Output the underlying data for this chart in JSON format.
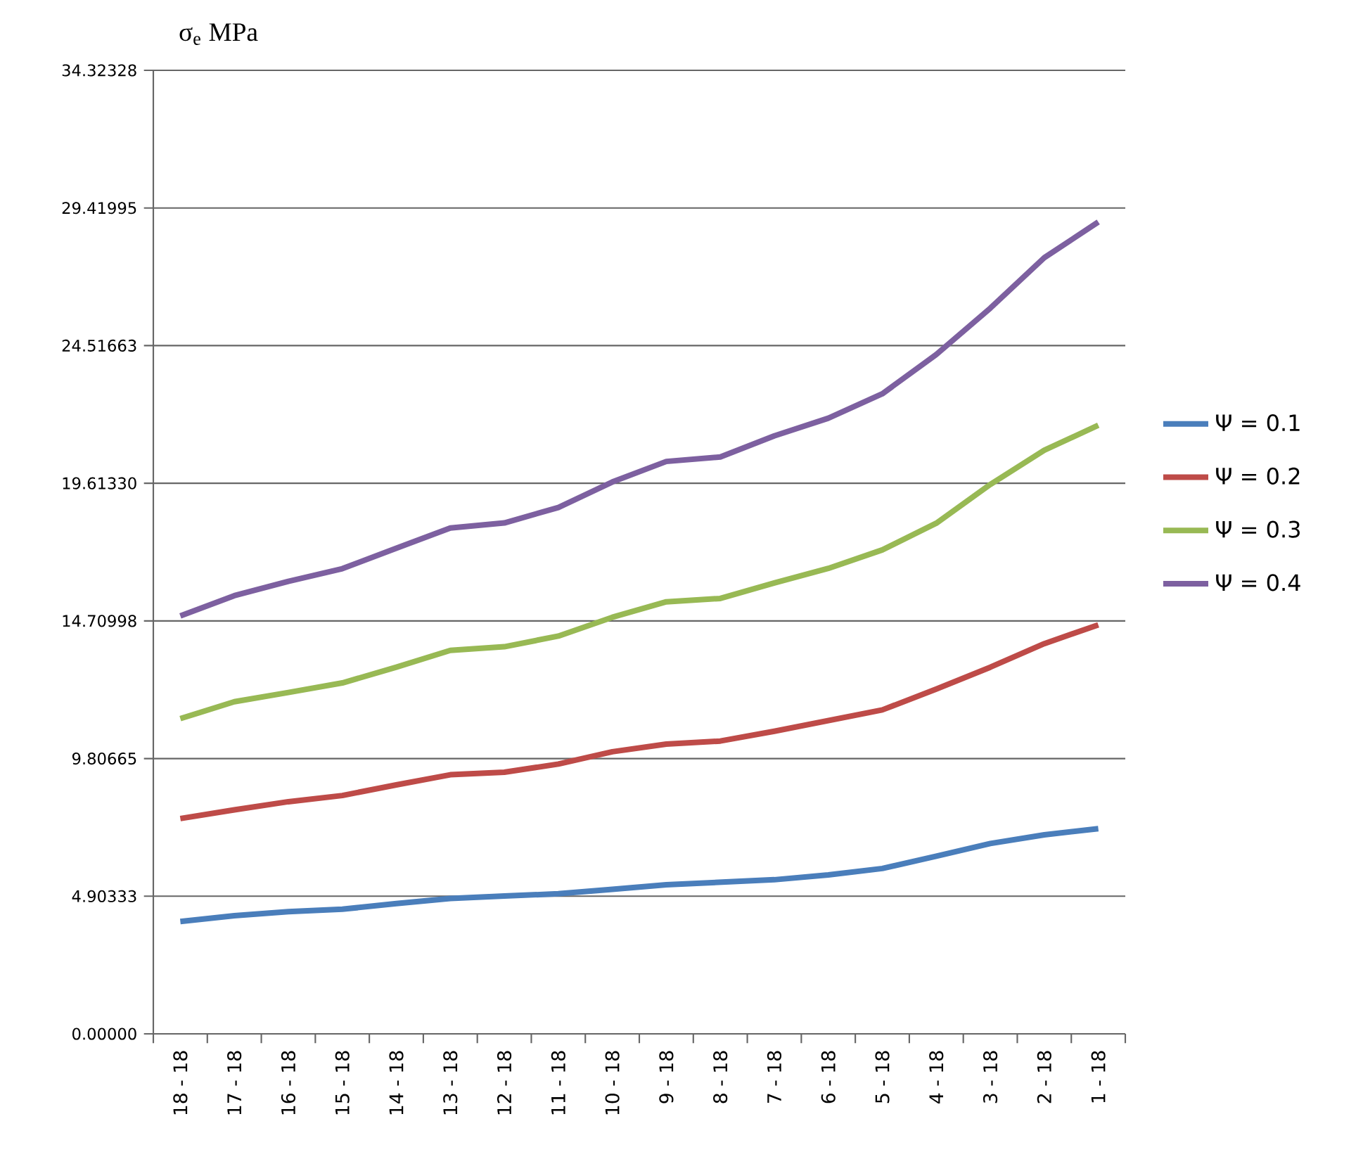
{
  "chart_data": {
    "type": "line",
    "ylabel": "σ$_{e}$ MPa",
    "categories": [
      "18 - 18",
      "17 - 18",
      "16 - 18",
      "15 - 18",
      "14 - 18",
      "13 - 18",
      "12 - 18",
      "11 - 18",
      "10 - 18",
      "9 - 18",
      "8 - 18",
      "7 - 18",
      "6 - 18",
      "5 - 18",
      "4 - 18",
      "3 - 18",
      "2 - 18",
      "1 - 18"
    ],
    "series": [
      {
        "name": "Ψ = 0.1",
        "color": "#4a7ebb",
        "values": [
          4.0,
          4.21,
          4.35,
          4.44,
          4.64,
          4.82,
          4.91,
          4.99,
          5.15,
          5.31,
          5.4,
          5.49,
          5.66,
          5.89,
          6.33,
          6.78,
          7.09,
          7.31
        ]
      },
      {
        "name": "Ψ = 0.2",
        "color": "#be4b48",
        "values": [
          7.67,
          7.98,
          8.27,
          8.49,
          8.87,
          9.23,
          9.32,
          9.61,
          10.05,
          10.32,
          10.43,
          10.78,
          11.16,
          11.54,
          12.28,
          13.06,
          13.9,
          14.57
        ]
      },
      {
        "name": "Ψ = 0.3",
        "color": "#98b954",
        "values": [
          11.23,
          11.83,
          12.16,
          12.5,
          13.06,
          13.66,
          13.79,
          14.17,
          14.84,
          15.39,
          15.51,
          16.06,
          16.58,
          17.24,
          18.19,
          19.57,
          20.79,
          21.68
        ]
      },
      {
        "name": "Ψ = 0.4",
        "color": "#7d60a0",
        "values": [
          14.89,
          15.61,
          16.12,
          16.57,
          17.3,
          18.02,
          18.2,
          18.75,
          19.66,
          20.39,
          20.55,
          21.3,
          21.93,
          22.8,
          24.2,
          25.85,
          27.65,
          28.92
        ]
      }
    ],
    "ylim": [
      0,
      34.32328
    ],
    "yticks": [
      {
        "value": 0,
        "label": "0.00000"
      },
      4.90333,
      9.80665,
      14.70998,
      {
        "value": 19.6133,
        "label": "19.61330"
      },
      24.51663,
      29.41995,
      34.32328
    ],
    "grid": "y",
    "legend": "right",
    "line_style": "solid"
  }
}
